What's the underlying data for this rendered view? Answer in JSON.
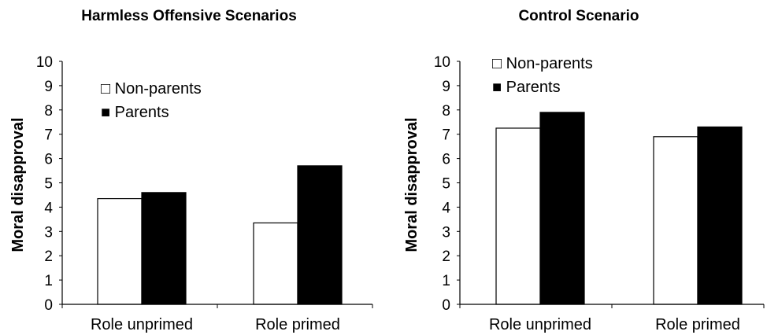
{
  "chart_data": [
    {
      "type": "bar",
      "title": "Harmless Offensive Scenarios",
      "xlabel": "",
      "ylabel": "Moral disapproval",
      "ylim": [
        0,
        10
      ],
      "yticks": [
        "0",
        "1",
        "2",
        "3",
        "4",
        "5",
        "6",
        "7",
        "8",
        "9",
        "10"
      ],
      "categories": [
        "Role unprimed",
        "Role primed"
      ],
      "series": [
        {
          "name": "Non-parents",
          "color": "#ffffff",
          "values": [
            4.35,
            3.35
          ]
        },
        {
          "name": "Parents",
          "color": "#000000",
          "values": [
            4.6,
            5.7
          ]
        }
      ],
      "legend_markers": [
        "□",
        "■"
      ],
      "legend_position": "top-left",
      "grid": false
    },
    {
      "type": "bar",
      "title": "Control Scenario",
      "xlabel": "",
      "ylabel": "Moral disapproval",
      "ylim": [
        0,
        10
      ],
      "yticks": [
        "0",
        "1",
        "2",
        "3",
        "4",
        "5",
        "6",
        "7",
        "8",
        "9",
        "10"
      ],
      "categories": [
        "Role unprimed",
        "Role primed"
      ],
      "series": [
        {
          "name": "Non-parents",
          "color": "#ffffff",
          "values": [
            7.25,
            6.9
          ]
        },
        {
          "name": "Parents",
          "color": "#000000",
          "values": [
            7.9,
            7.3
          ]
        }
      ],
      "legend_markers": [
        "□",
        "■"
      ],
      "legend_position": "top-left",
      "grid": false
    }
  ]
}
